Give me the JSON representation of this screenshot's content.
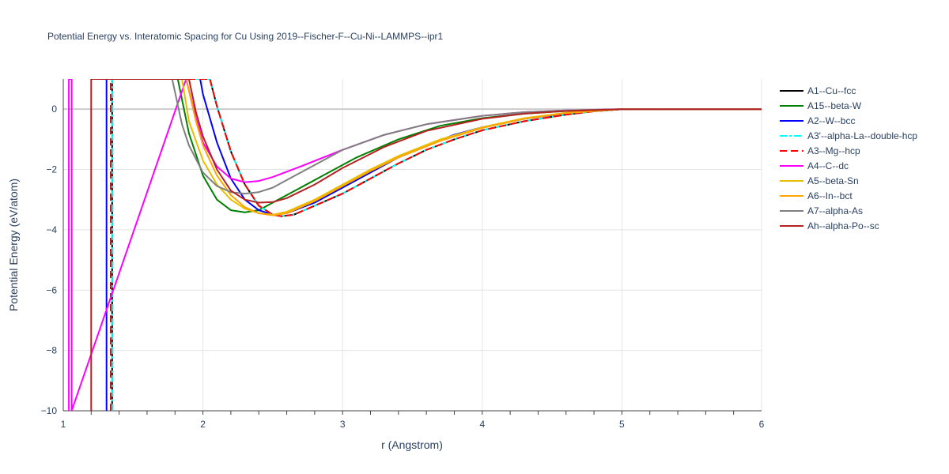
{
  "chart_data": {
    "type": "line",
    "title": "Potential Energy vs. Interatomic Spacing for Cu Using 2019--Fischer-F--Cu-Ni--LAMMPS--ipr1",
    "xlabel": "r (Angstrom)",
    "ylabel": "Potential Energy (eV/atom)",
    "xlim": [
      1,
      6
    ],
    "ylim": [
      -10,
      1
    ],
    "x_ticks": [
      1,
      2,
      3,
      4,
      5,
      6
    ],
    "y_ticks": [
      0,
      -2,
      -4,
      -6,
      -8,
      -10
    ],
    "x_tick_labels": [
      "1",
      "2",
      "3",
      "4",
      "5",
      "6"
    ],
    "y_tick_labels": [
      "0",
      "−2",
      "−4",
      "−6",
      "−8",
      "−10"
    ],
    "grid": true,
    "legend_position": "right",
    "series": [
      {
        "name": "A1--Cu--fcc",
        "color": "#000000",
        "dash": "solid",
        "x": [
          1.35,
          1.35,
          2.05,
          2.1,
          2.2,
          2.3,
          2.4,
          2.5,
          2.56,
          2.65,
          2.8,
          3.0,
          3.2,
          3.4,
          3.6,
          3.8,
          4.0,
          4.3,
          4.6,
          4.8,
          5.0,
          6.0
        ],
        "y": [
          -10,
          1,
          1,
          0.1,
          -1.4,
          -2.5,
          -3.2,
          -3.5,
          -3.55,
          -3.5,
          -3.2,
          -2.8,
          -2.3,
          -1.8,
          -1.35,
          -1.0,
          -0.7,
          -0.4,
          -0.18,
          -0.07,
          0,
          0
        ]
      },
      {
        "name": "A15--beta-W",
        "color": "#008000",
        "dash": "solid",
        "x": [
          1.82,
          1.9,
          2.0,
          2.1,
          2.2,
          2.3,
          2.4,
          2.5,
          2.7,
          2.9,
          3.1,
          3.4,
          3.7,
          4.0,
          4.3,
          4.6,
          5.0,
          6.0
        ],
        "y": [
          1,
          -0.8,
          -2.2,
          -3.0,
          -3.35,
          -3.42,
          -3.35,
          -3.1,
          -2.6,
          -2.1,
          -1.6,
          -1.0,
          -0.55,
          -0.3,
          -0.15,
          -0.06,
          0,
          0
        ]
      },
      {
        "name": "A2--W--bcc",
        "color": "#0000ff",
        "dash": "solid",
        "x": [
          1.31,
          1.31,
          1.98,
          2.0,
          2.1,
          2.2,
          2.3,
          2.4,
          2.5,
          2.6,
          2.8,
          3.0,
          3.2,
          3.4,
          3.6,
          3.8,
          4.0,
          4.3,
          4.6,
          5.0,
          6.0
        ],
        "y": [
          -10,
          1,
          1,
          0.5,
          -1.1,
          -2.3,
          -3.0,
          -3.35,
          -3.5,
          -3.45,
          -3.1,
          -2.6,
          -2.1,
          -1.6,
          -1.2,
          -0.85,
          -0.6,
          -0.32,
          -0.14,
          0,
          0
        ]
      },
      {
        "name": "A3'--alpha-La--double-hcp",
        "color": "#00ffff",
        "dash": "dashdot",
        "x": [
          1.35,
          1.35,
          2.05,
          2.1,
          2.2,
          2.3,
          2.4,
          2.5,
          2.56,
          2.65,
          2.8,
          3.0,
          3.2,
          3.4,
          3.6,
          3.8,
          4.0,
          4.3,
          4.6,
          4.8,
          5.0,
          6.0
        ],
        "y": [
          -10,
          1,
          1,
          0.1,
          -1.4,
          -2.5,
          -3.2,
          -3.5,
          -3.55,
          -3.5,
          -3.2,
          -2.8,
          -2.3,
          -1.8,
          -1.35,
          -1.0,
          -0.7,
          -0.4,
          -0.18,
          -0.07,
          0,
          0
        ]
      },
      {
        "name": "A3--Mg--hcp",
        "color": "#ff0000",
        "dash": "dash",
        "x": [
          1.34,
          1.34,
          2.05,
          2.1,
          2.2,
          2.3,
          2.4,
          2.5,
          2.56,
          2.65,
          2.8,
          3.0,
          3.2,
          3.4,
          3.6,
          3.8,
          4.0,
          4.3,
          4.6,
          4.8,
          5.0,
          6.0
        ],
        "y": [
          -10,
          1,
          1,
          0.1,
          -1.4,
          -2.5,
          -3.2,
          -3.5,
          -3.55,
          -3.5,
          -3.2,
          -2.8,
          -2.3,
          -1.8,
          -1.35,
          -1.0,
          -0.7,
          -0.4,
          -0.18,
          -0.07,
          0,
          0
        ]
      },
      {
        "name": "A4--C--dc",
        "color": "#ff00ff",
        "dash": "solid",
        "x": [
          1.04,
          1.04,
          1.06,
          1.06,
          1.88,
          1.95,
          2.0,
          2.1,
          2.2,
          2.3,
          2.4,
          2.5,
          2.7,
          3.0,
          3.3,
          3.6,
          4.0,
          4.3,
          4.6,
          5.0,
          6.0
        ],
        "y": [
          -10,
          1,
          1,
          -10,
          1,
          -0.3,
          -1.1,
          -1.9,
          -2.3,
          -2.42,
          -2.38,
          -2.25,
          -1.9,
          -1.35,
          -0.85,
          -0.5,
          -0.22,
          -0.1,
          -0.04,
          0,
          0
        ]
      },
      {
        "name": "A5--beta-Sn",
        "color": "#e6c000",
        "dash": "solid",
        "x": [
          1.85,
          1.9,
          2.0,
          2.1,
          2.2,
          2.3,
          2.4,
          2.5,
          2.6,
          2.8,
          3.0,
          3.2,
          3.4,
          3.7,
          4.0,
          4.3,
          4.6,
          5.0,
          6.0
        ],
        "y": [
          1,
          -0.4,
          -1.7,
          -2.5,
          -3.0,
          -3.3,
          -3.45,
          -3.5,
          -3.4,
          -3.0,
          -2.5,
          -2.0,
          -1.55,
          -1.0,
          -0.6,
          -0.3,
          -0.12,
          0,
          0
        ]
      },
      {
        "name": "A6--In--bct",
        "color": "#ffa500",
        "dash": "solid",
        "x": [
          1.88,
          1.95,
          2.0,
          2.1,
          2.2,
          2.3,
          2.4,
          2.5,
          2.6,
          2.8,
          3.0,
          3.2,
          3.4,
          3.7,
          4.0,
          4.3,
          4.6,
          5.0,
          6.0
        ],
        "y": [
          1,
          -0.4,
          -1.2,
          -2.2,
          -2.85,
          -3.25,
          -3.45,
          -3.52,
          -3.45,
          -3.05,
          -2.55,
          -2.05,
          -1.6,
          -1.05,
          -0.62,
          -0.32,
          -0.13,
          0,
          0
        ]
      },
      {
        "name": "A7--alpha-As",
        "color": "#808080",
        "dash": "solid",
        "x": [
          1.78,
          1.85,
          1.9,
          2.0,
          2.1,
          2.2,
          2.3,
          2.4,
          2.5,
          2.7,
          3.0,
          3.3,
          3.6,
          4.0,
          4.3,
          4.6,
          5.0,
          6.0
        ],
        "y": [
          1,
          -0.5,
          -1.2,
          -2.1,
          -2.55,
          -2.75,
          -2.8,
          -2.75,
          -2.6,
          -2.1,
          -1.35,
          -0.85,
          -0.5,
          -0.22,
          -0.1,
          -0.04,
          0,
          0
        ]
      },
      {
        "name": "Ah--alpha-Po--sc",
        "color": "#b22222",
        "dash": "solid",
        "x": [
          1.2,
          1.2,
          1.9,
          1.95,
          2.0,
          2.1,
          2.2,
          2.3,
          2.4,
          2.5,
          2.6,
          2.8,
          3.0,
          3.3,
          3.6,
          4.0,
          4.3,
          4.6,
          5.0,
          6.0
        ],
        "y": [
          -10,
          1,
          1,
          -0.1,
          -0.9,
          -2.0,
          -2.7,
          -3.0,
          -3.1,
          -3.08,
          -2.95,
          -2.5,
          -1.95,
          -1.25,
          -0.72,
          -0.32,
          -0.15,
          -0.06,
          0,
          0
        ]
      }
    ]
  }
}
